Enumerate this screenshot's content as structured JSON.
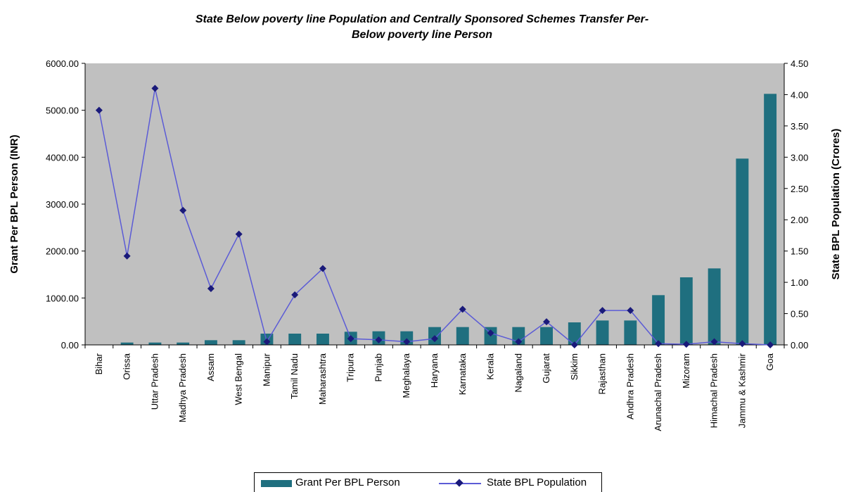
{
  "colors": {
    "plot_background": "#c0c0c0",
    "bar": "#1f6f7f",
    "line": "#5b5bd6",
    "marker": "#1a1a7a"
  },
  "legend": {
    "bar_label": "Grant Per BPL Person",
    "line_label": "State BPL Population"
  },
  "chart_data": {
    "type": "bar",
    "title_line1": "State Below poverty line Population and Centrally Sponsored Schemes Transfer Per-",
    "title_line2": "Below poverty line Person",
    "categories": [
      "Bihar",
      "Orissa",
      "Uttar Pradesh",
      "Madhya Pradesh",
      "Assam",
      "West Bengal",
      "Manipur",
      "Tamil Nadu",
      "Maharashtra",
      "Tripura",
      "Punjab",
      "Meghalaya",
      "Haryana",
      "Karnataka",
      "Kerala",
      "Nagaland",
      "Gujarat",
      "Sikkim",
      "Rajasthan",
      "Andhra Pradesh",
      "Arunachal Pradesh",
      "Mizoram",
      "Himachal Pradesh",
      "Jammu & Kashmir",
      "Goa"
    ],
    "series": [
      {
        "name": "Grant Per BPL Person",
        "type": "bar",
        "axis": "left",
        "values": [
          0,
          50,
          50,
          50,
          100,
          100,
          240,
          240,
          240,
          280,
          290,
          290,
          380,
          380,
          380,
          380,
          380,
          480,
          520,
          520,
          1060,
          1440,
          1630,
          3970,
          5350
        ]
      },
      {
        "name": "State BPL Population",
        "type": "line",
        "axis": "right",
        "values": [
          3.75,
          1.42,
          4.1,
          2.15,
          0.9,
          1.77,
          0.05,
          0.8,
          1.22,
          0.1,
          0.08,
          0.05,
          0.1,
          0.57,
          0.19,
          0.05,
          0.37,
          0.0,
          0.55,
          0.55,
          0.02,
          0.01,
          0.05,
          0.02,
          0.0
        ]
      }
    ],
    "ylabel": "Grant Per BPL Person (INR)",
    "y2label": "State BPL Population (Crores)",
    "ylim": [
      0,
      6000
    ],
    "y2lim": [
      0,
      4.5
    ],
    "yticks": [
      "0.00",
      "1000.00",
      "2000.00",
      "3000.00",
      "4000.00",
      "5000.00",
      "6000.00"
    ],
    "y2ticks": [
      "0.00",
      "0.50",
      "1.00",
      "1.50",
      "2.00",
      "2.50",
      "3.00",
      "3.50",
      "4.00",
      "4.50"
    ],
    "grid": false,
    "legend_position": "bottom"
  }
}
